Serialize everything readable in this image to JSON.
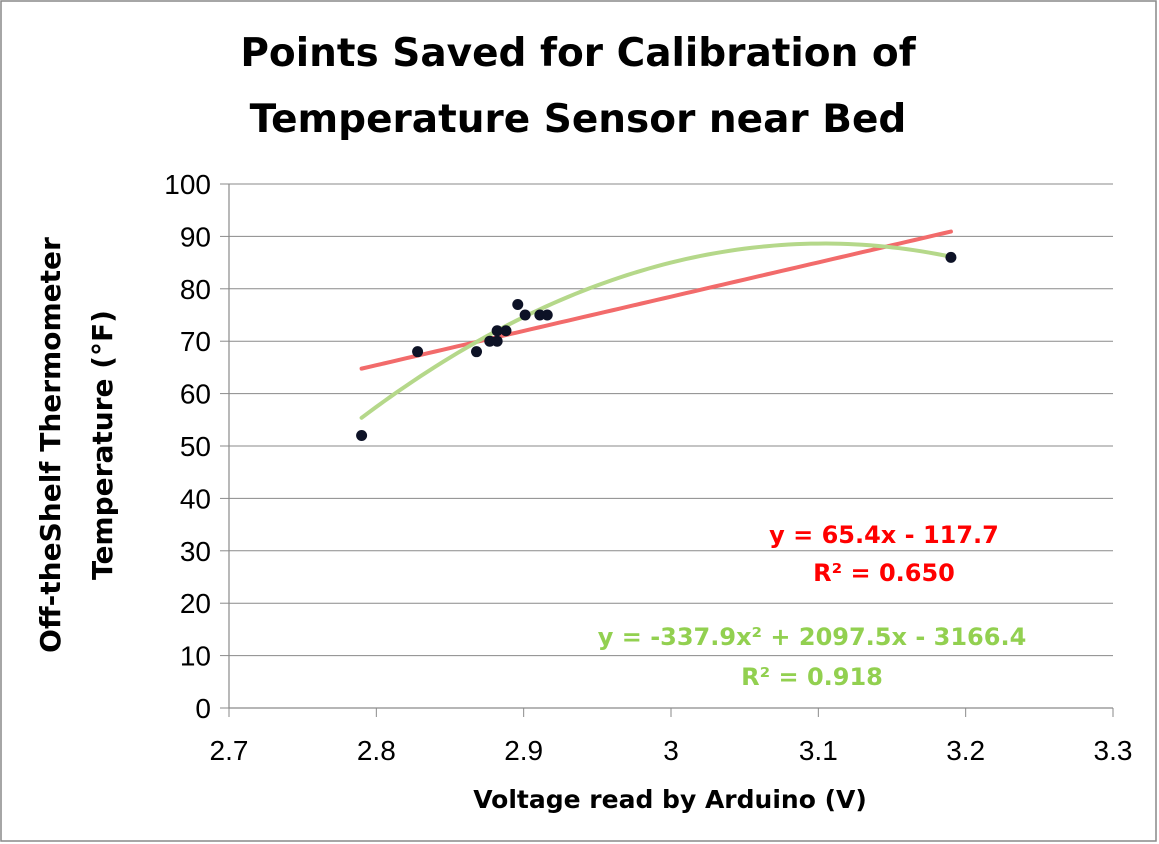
{
  "chart_data": {
    "type": "scatter",
    "title_lines": [
      "Points Saved for Calibration of",
      "Temperature Sensor near Bed"
    ],
    "xlabel": "Voltage read by Arduino (V)",
    "ylabel_lines": [
      "Off-theShelf Thermometer",
      "Temperature (°F)"
    ],
    "xlim": [
      2.7,
      3.3
    ],
    "ylim": [
      0,
      100
    ],
    "x_ticks": [
      "2.7",
      "2.8",
      "2.9",
      "3",
      "3.1",
      "3.2",
      "3.3"
    ],
    "y_ticks": [
      "0",
      "10",
      "20",
      "30",
      "40",
      "50",
      "60",
      "70",
      "80",
      "90",
      "100"
    ],
    "grid": "horizontal",
    "points": [
      {
        "x": 2.79,
        "y": 52
      },
      {
        "x": 2.828,
        "y": 68
      },
      {
        "x": 2.868,
        "y": 68
      },
      {
        "x": 2.877,
        "y": 70
      },
      {
        "x": 2.882,
        "y": 70
      },
      {
        "x": 2.882,
        "y": 72
      },
      {
        "x": 2.888,
        "y": 72
      },
      {
        "x": 2.896,
        "y": 77
      },
      {
        "x": 2.901,
        "y": 75
      },
      {
        "x": 2.911,
        "y": 75
      },
      {
        "x": 2.916,
        "y": 75
      },
      {
        "x": 3.19,
        "y": 86
      }
    ],
    "trendlines": [
      {
        "type": "linear",
        "coefficients": [
          65.4,
          -117.7
        ],
        "x_range": [
          2.79,
          3.19
        ],
        "equation": "y = 65.4x - 117.7",
        "r2": "R² = 0.650",
        "color": "#f26b6b",
        "label_color": "#ff0000"
      },
      {
        "type": "quadratic",
        "coefficients": [
          -337.9,
          2097.5,
          -3166.4
        ],
        "x_range": [
          2.79,
          3.19
        ],
        "equation": "y = -337.9x² + 2097.5x - 3166.4",
        "r2": "R² = 0.918",
        "color": "#b5d88a",
        "label_color": "#92d050"
      }
    ],
    "point_color": "#0d1226"
  }
}
